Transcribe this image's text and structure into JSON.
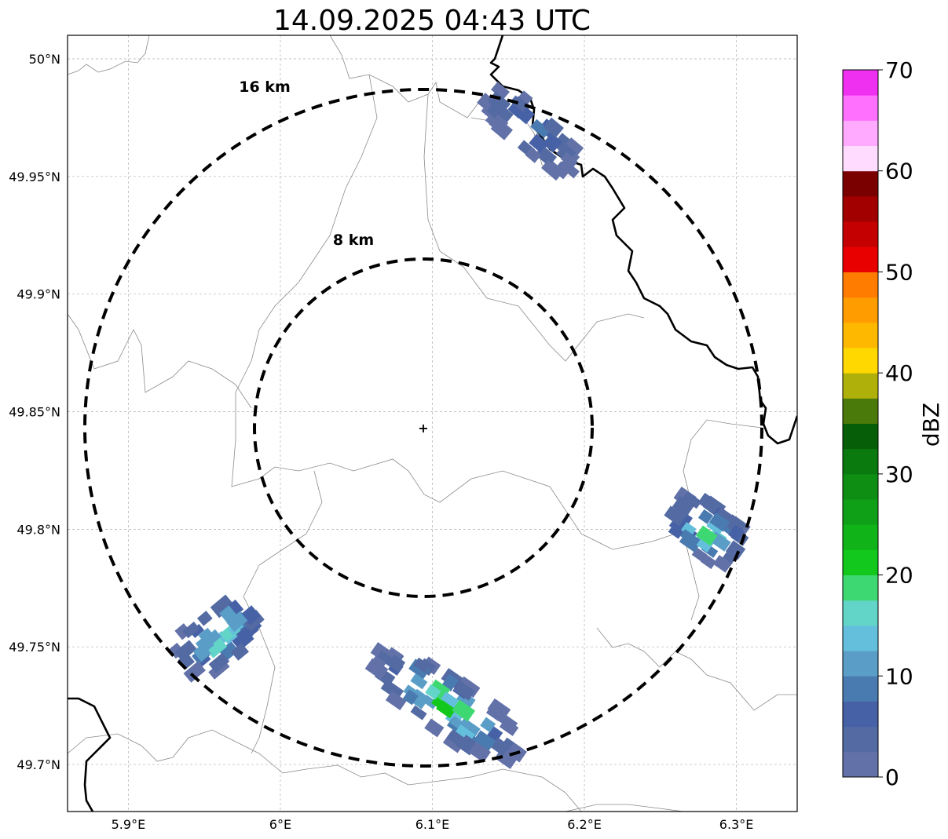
{
  "title": "14.09.2025 04:43 UTC",
  "map": {
    "lon_range": [
      5.86,
      6.34
    ],
    "lat_range": [
      49.68,
      50.01
    ],
    "lon_ticks": [
      {
        "value": 5.9,
        "label": "5.9°E"
      },
      {
        "value": 6.0,
        "label": "6°E"
      },
      {
        "value": 6.1,
        "label": "6.1°E"
      },
      {
        "value": 6.2,
        "label": "6.2°E"
      },
      {
        "value": 6.3,
        "label": "6.3°E"
      }
    ],
    "lat_ticks": [
      {
        "value": 50.0,
        "label": "50°N"
      },
      {
        "value": 49.95,
        "label": "49.95°N"
      },
      {
        "value": 49.9,
        "label": "49.9°N"
      },
      {
        "value": 49.85,
        "label": "49.85°N"
      },
      {
        "value": 49.8,
        "label": "49.8°N"
      },
      {
        "value": 49.75,
        "label": "49.75°N"
      },
      {
        "value": 49.7,
        "label": "49.7°N"
      }
    ],
    "grid": true,
    "radar_site": {
      "lon": 6.095,
      "lat": 49.843
    },
    "range_rings": [
      {
        "label": "8 km"
      },
      {
        "label": "16 km"
      }
    ]
  },
  "colorbar": {
    "label": "dBZ",
    "min": 0,
    "max": 70,
    "step": 2.5,
    "ticks": [
      "0",
      "10",
      "20",
      "30",
      "40",
      "50",
      "60",
      "70"
    ],
    "colors": [
      "#6272a8",
      "#546aa3",
      "#4661a5",
      "#4a7bb0",
      "#5a9ec8",
      "#64bfdc",
      "#62d4c8",
      "#3ed872",
      "#12c81c",
      "#10b419",
      "#0fa018",
      "#0e8e12",
      "#0b7a0e",
      "#075e09",
      "#4a7a0a",
      "#b0b00a",
      "#ffd800",
      "#ffb800",
      "#ff9c00",
      "#ff7c00",
      "#e80000",
      "#c40000",
      "#a20000",
      "#7a0000",
      "#ffdcff",
      "#ffaaff",
      "#ff70ff",
      "#f030f0"
    ]
  },
  "precip_echoes": [
    {
      "name": "north",
      "lon": 6.165,
      "lat": 49.97,
      "max_dbz": 12
    },
    {
      "name": "east",
      "lon": 6.28,
      "lat": 49.8,
      "max_dbz": 24
    },
    {
      "name": "southwest",
      "lon": 5.96,
      "lat": 49.755,
      "max_dbz": 20
    },
    {
      "name": "south",
      "lon": 6.11,
      "lat": 49.725,
      "max_dbz": 26
    }
  ]
}
